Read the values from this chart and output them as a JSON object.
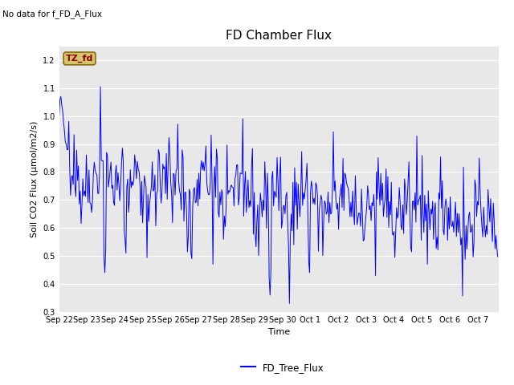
{
  "title": "FD Chamber Flux",
  "xlabel": "Time",
  "ylabel": "Soil CO2 Flux (μmol/m2/s)",
  "note": "No data for f_FD_A_Flux",
  "legend_label": "FD_Tree_Flux",
  "line_color": "blue",
  "ylim": [
    0.3,
    1.25
  ],
  "yticks": [
    0.3,
    0.4,
    0.5,
    0.6,
    0.7,
    0.8,
    0.9,
    1.0,
    1.1,
    1.2
  ],
  "bg_color": "#e8e8e8",
  "tz_fd_box_color": "#d4c46a",
  "tz_fd_text_color": "#8b0000",
  "title_fontsize": 11,
  "tick_fontsize": 7,
  "label_fontsize": 8,
  "note_fontsize": 7.5,
  "seed": 42
}
